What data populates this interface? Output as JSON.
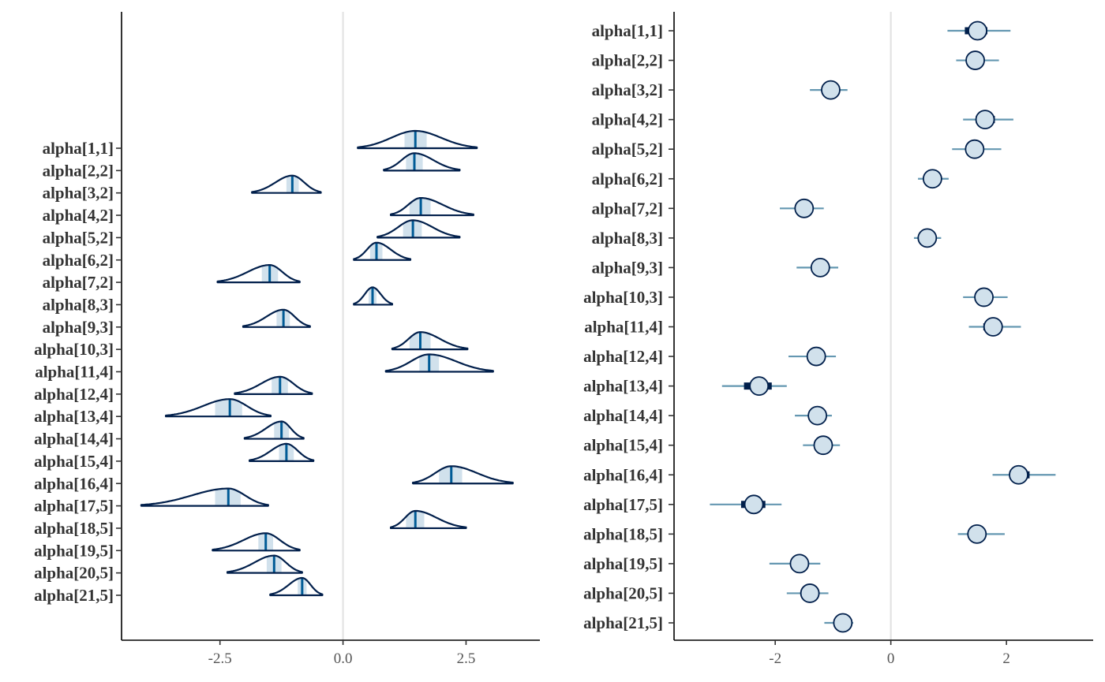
{
  "colors": {
    "dark": "#011f4b",
    "median": "#005b96",
    "inner_fill": "#d1e1ec",
    "outer_line": "#6497b1",
    "point_fill": "#d1e1ec",
    "zero_line": "#e3e3e3"
  },
  "chart_data": [
    {
      "type": "ridgeline",
      "title": "",
      "xlabel": "",
      "ylabel": "",
      "xlim": [
        -4.5,
        4.0
      ],
      "xticks": [
        -2.5,
        0.0,
        2.5
      ],
      "xtick_labels": [
        "-2.5",
        "0.0",
        "2.5"
      ],
      "vline": 0,
      "grid": false,
      "parameters": [
        "alpha[1,1]",
        "alpha[2,2]",
        "alpha[3,2]",
        "alpha[4,2]",
        "alpha[5,2]",
        "alpha[6,2]",
        "alpha[7,2]",
        "alpha[8,3]",
        "alpha[9,3]",
        "alpha[10,3]",
        "alpha[11,4]",
        "alpha[12,4]",
        "alpha[13,4]",
        "alpha[14,4]",
        "alpha[15,4]",
        "alpha[16,4]",
        "alpha[17,5]",
        "alpha[18,5]",
        "alpha[19,5]",
        "alpha[20,5]",
        "alpha[21,5]"
      ],
      "median": [
        1.47,
        1.45,
        -1.03,
        1.58,
        1.42,
        0.68,
        -1.49,
        0.6,
        -1.21,
        1.57,
        1.75,
        -1.28,
        -2.3,
        -1.25,
        -1.15,
        2.2,
        -2.33,
        1.47,
        -1.57,
        -1.4,
        -0.83
      ],
      "inner_lower": [
        1.25,
        1.28,
        -1.15,
        1.35,
        1.22,
        0.55,
        -1.65,
        0.52,
        -1.35,
        1.35,
        1.55,
        -1.45,
        -2.6,
        -1.4,
        -1.3,
        1.95,
        -2.6,
        1.28,
        -1.72,
        -1.55,
        -0.92
      ],
      "inner_upper": [
        1.7,
        1.62,
        -0.9,
        1.78,
        1.6,
        0.8,
        -1.32,
        0.68,
        -1.08,
        1.78,
        1.95,
        -1.12,
        -2.05,
        -1.1,
        -1.0,
        2.42,
        -2.08,
        1.65,
        -1.42,
        -1.25,
        -0.74
      ],
      "outer_lower": [
        0.3,
        0.83,
        -1.85,
        0.97,
        0.7,
        0.22,
        -2.55,
        0.22,
        -2.03,
        1.0,
        0.87,
        -2.2,
        -3.6,
        -2.0,
        -1.9,
        1.42,
        -4.1,
        0.97,
        -2.65,
        -2.35,
        -1.48
      ],
      "outer_upper": [
        2.72,
        2.37,
        -0.45,
        2.65,
        2.37,
        1.37,
        -0.88,
        1.0,
        -0.67,
        2.53,
        3.05,
        -0.63,
        -1.47,
        -0.8,
        -0.6,
        3.45,
        -1.52,
        2.5,
        -0.88,
        -0.83,
        -0.42
      ]
    },
    {
      "type": "interval",
      "title": "",
      "xlabel": "",
      "ylabel": "",
      "xlim": [
        -3.75,
        3.5
      ],
      "xticks": [
        -2,
        0,
        2
      ],
      "xtick_labels": [
        "-2",
        "0",
        "2"
      ],
      "vline": 0,
      "grid": false,
      "parameters": [
        "alpha[1,1]",
        "alpha[2,2]",
        "alpha[3,2]",
        "alpha[4,2]",
        "alpha[5,2]",
        "alpha[6,2]",
        "alpha[7,2]",
        "alpha[8,3]",
        "alpha[9,3]",
        "alpha[10,3]",
        "alpha[11,4]",
        "alpha[12,4]",
        "alpha[13,4]",
        "alpha[14,4]",
        "alpha[15,4]",
        "alpha[16,4]",
        "alpha[17,5]",
        "alpha[18,5]",
        "alpha[19,5]",
        "alpha[20,5]",
        "alpha[21,5]"
      ],
      "point": [
        1.5,
        1.46,
        -1.04,
        1.63,
        1.45,
        0.72,
        -1.5,
        0.63,
        -1.22,
        1.61,
        1.77,
        -1.29,
        -2.28,
        -1.27,
        -1.17,
        2.21,
        -2.37,
        1.49,
        -1.58,
        -1.4,
        -0.83
      ],
      "inner_lower": [
        1.28,
        1.33,
        -1.11,
        1.47,
        1.32,
        0.65,
        -1.6,
        0.55,
        -1.33,
        1.45,
        1.6,
        -1.38,
        -2.54,
        -1.37,
        -1.24,
        2.05,
        -2.59,
        1.38,
        -1.71,
        -1.49,
        -0.88
      ],
      "inner_upper": [
        1.67,
        1.55,
        -0.97,
        1.8,
        1.56,
        0.8,
        -1.41,
        0.7,
        -1.13,
        1.76,
        1.92,
        -1.2,
        -2.06,
        -1.17,
        -1.1,
        2.4,
        -2.17,
        1.6,
        -1.46,
        -1.31,
        -0.76
      ],
      "outer_lower": [
        0.98,
        1.13,
        -1.4,
        1.25,
        1.06,
        0.47,
        -1.92,
        0.4,
        -1.63,
        1.25,
        1.35,
        -1.77,
        -2.92,
        -1.66,
        -1.52,
        1.76,
        -3.13,
        1.16,
        -2.1,
        -1.8,
        -1.15
      ],
      "outer_upper": [
        2.07,
        1.87,
        -0.75,
        2.12,
        1.91,
        1.0,
        -1.16,
        0.87,
        -0.91,
        2.02,
        2.25,
        -0.95,
        -1.8,
        -1.02,
        -0.88,
        2.85,
        -1.89,
        1.97,
        -1.22,
        -1.08,
        -0.65
      ]
    }
  ]
}
